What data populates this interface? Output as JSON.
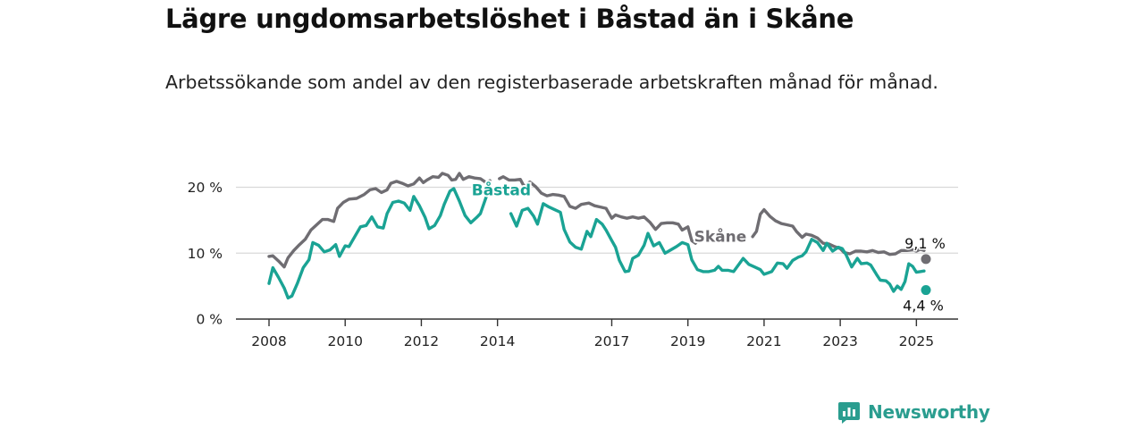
{
  "title": "Lägre ungdomsarbetslöshet i Båstad än i Skåne",
  "subtitle": "Arbetssökande som andel av den registerbaserade arbetskraften månad för månad.",
  "brand": {
    "name": "Newsworthy",
    "icon": "newsworthy-logo-icon"
  },
  "colors": {
    "baastad": "#1aa394",
    "skaane": "#6f6d72",
    "grid": "#d9d9d9",
    "axis": "#333333"
  },
  "chart_data": {
    "type": "line",
    "x_unit": "year",
    "xlim": [
      2008,
      2025.25
    ],
    "ylim": [
      0,
      20
    ],
    "y_ticks": [
      {
        "value": 0,
        "label": "0 %"
      },
      {
        "value": 10,
        "label": "10 %"
      },
      {
        "value": 20,
        "label": "20 %"
      }
    ],
    "x_ticks": [
      {
        "value": 2008,
        "label": "2008"
      },
      {
        "value": 2010,
        "label": "2010"
      },
      {
        "value": 2012,
        "label": "2012"
      },
      {
        "value": 2014,
        "label": "2014"
      },
      {
        "value": 2017,
        "label": "2017"
      },
      {
        "value": 2019,
        "label": "2019"
      },
      {
        "value": 2021,
        "label": "2021"
      },
      {
        "value": 2023,
        "label": "2023"
      },
      {
        "value": 2025,
        "label": "2025"
      }
    ],
    "grid": true,
    "series": [
      {
        "name": "Skåne",
        "color": "#6f6d72",
        "end_label": "9,1 %",
        "points": [
          [
            2008.0,
            9.5
          ],
          [
            2008.1,
            9.6
          ],
          [
            2008.25,
            8.8
          ],
          [
            2008.4,
            7.9
          ],
          [
            2008.5,
            9.3
          ],
          [
            2008.65,
            10.4
          ],
          [
            2008.8,
            11.3
          ],
          [
            2008.95,
            12.1
          ],
          [
            2009.1,
            13.5
          ],
          [
            2009.25,
            14.3
          ],
          [
            2009.4,
            15.1
          ],
          [
            2009.55,
            15.1
          ],
          [
            2009.7,
            14.8
          ],
          [
            2009.8,
            16.8
          ],
          [
            2009.95,
            17.7
          ],
          [
            2010.1,
            18.2
          ],
          [
            2010.3,
            18.3
          ],
          [
            2010.5,
            18.9
          ],
          [
            2010.65,
            19.6
          ],
          [
            2010.8,
            19.8
          ],
          [
            2010.95,
            19.2
          ],
          [
            2011.1,
            19.6
          ],
          [
            2011.2,
            20.6
          ],
          [
            2011.35,
            20.9
          ],
          [
            2011.5,
            20.6
          ],
          [
            2011.65,
            20.2
          ],
          [
            2011.8,
            20.5
          ],
          [
            2011.95,
            21.4
          ],
          [
            2012.05,
            20.7
          ],
          [
            2012.15,
            21.1
          ],
          [
            2012.3,
            21.6
          ],
          [
            2012.45,
            21.5
          ],
          [
            2012.55,
            22.1
          ],
          [
            2012.7,
            21.8
          ],
          [
            2012.8,
            21.1
          ],
          [
            2012.9,
            21.2
          ],
          [
            2013.0,
            22.1
          ],
          [
            2013.1,
            21.2
          ],
          [
            2013.25,
            21.6
          ],
          [
            2013.4,
            21.4
          ],
          [
            2013.55,
            21.3
          ],
          [
            2013.7,
            20.7
          ],
          [
            2013.8,
            21.0
          ],
          [
            2013.95,
            null
          ],
          [
            2014.05,
            21.3
          ],
          [
            2014.15,
            21.6
          ],
          [
            2014.3,
            21.1
          ],
          [
            2014.45,
            21.1
          ],
          [
            2014.6,
            21.2
          ],
          [
            2014.7,
            20.1
          ],
          [
            2014.85,
            20.8
          ],
          [
            2015.0,
            20.1
          ],
          [
            2015.15,
            19.1
          ],
          [
            2015.3,
            18.7
          ],
          [
            2015.45,
            18.9
          ],
          [
            2015.6,
            18.8
          ],
          [
            2015.75,
            18.6
          ],
          [
            2015.9,
            17.1
          ],
          [
            2016.05,
            16.8
          ],
          [
            2016.2,
            17.4
          ],
          [
            2016.4,
            17.6
          ],
          [
            2016.55,
            17.2
          ],
          [
            2016.7,
            17.0
          ],
          [
            2016.85,
            16.8
          ],
          [
            2017.0,
            15.3
          ],
          [
            2017.1,
            15.8
          ],
          [
            2017.25,
            15.5
          ],
          [
            2017.4,
            15.3
          ],
          [
            2017.55,
            15.5
          ],
          [
            2017.7,
            15.3
          ],
          [
            2017.85,
            15.5
          ],
          [
            2018.0,
            14.7
          ],
          [
            2018.15,
            13.6
          ],
          [
            2018.3,
            14.5
          ],
          [
            2018.45,
            14.6
          ],
          [
            2018.6,
            14.6
          ],
          [
            2018.75,
            14.4
          ],
          [
            2018.85,
            13.5
          ],
          [
            2019.0,
            14.0
          ],
          [
            2019.1,
            11.9
          ],
          [
            2019.2,
            11.5
          ],
          [
            2019.35,
            12.5
          ],
          [
            2019.5,
            12.8
          ],
          [
            2019.55,
            null
          ],
          [
            2020.7,
            12.5
          ],
          [
            2020.8,
            13.3
          ],
          [
            2020.9,
            15.9
          ],
          [
            2021.0,
            16.6
          ],
          [
            2021.15,
            15.6
          ],
          [
            2021.3,
            14.9
          ],
          [
            2021.45,
            14.5
          ],
          [
            2021.6,
            14.3
          ],
          [
            2021.75,
            14.1
          ],
          [
            2021.85,
            13.3
          ],
          [
            2022.0,
            12.4
          ],
          [
            2022.1,
            12.9
          ],
          [
            2022.25,
            12.7
          ],
          [
            2022.4,
            12.3
          ],
          [
            2022.55,
            11.5
          ],
          [
            2022.7,
            11.4
          ],
          [
            2022.85,
            11.0
          ],
          [
            2023.0,
            10.7
          ],
          [
            2023.1,
            10.1
          ],
          [
            2023.25,
            9.9
          ],
          [
            2023.4,
            10.3
          ],
          [
            2023.55,
            10.3
          ],
          [
            2023.7,
            10.2
          ],
          [
            2023.85,
            10.4
          ],
          [
            2024.0,
            10.1
          ],
          [
            2024.15,
            10.2
          ],
          [
            2024.3,
            9.8
          ],
          [
            2024.45,
            9.9
          ],
          [
            2024.6,
            10.4
          ],
          [
            2024.75,
            10.4
          ],
          [
            2024.9,
            10.5
          ],
          [
            2025.0,
            10.3
          ],
          [
            2025.1,
            10.6
          ],
          [
            2025.2,
            10.4
          ],
          [
            2025.25,
            9.1
          ]
        ],
        "label_at": [
          2019.85,
          11.75
        ]
      },
      {
        "name": "Båstad",
        "color": "#1aa394",
        "end_label": "4,4 %",
        "points": [
          [
            2008.0,
            5.4
          ],
          [
            2008.1,
            7.8
          ],
          [
            2008.25,
            6.3
          ],
          [
            2008.4,
            4.7
          ],
          [
            2008.5,
            3.2
          ],
          [
            2008.6,
            3.5
          ],
          [
            2008.75,
            5.5
          ],
          [
            2008.9,
            7.8
          ],
          [
            2009.05,
            9.0
          ],
          [
            2009.15,
            11.6
          ],
          [
            2009.3,
            11.2
          ],
          [
            2009.45,
            10.2
          ],
          [
            2009.6,
            10.5
          ],
          [
            2009.75,
            11.3
          ],
          [
            2009.85,
            9.5
          ],
          [
            2010.0,
            11.1
          ],
          [
            2010.1,
            11.0
          ],
          [
            2010.25,
            12.5
          ],
          [
            2010.4,
            14.0
          ],
          [
            2010.55,
            14.2
          ],
          [
            2010.7,
            15.5
          ],
          [
            2010.85,
            14.0
          ],
          [
            2011.0,
            13.8
          ],
          [
            2011.1,
            16.0
          ],
          [
            2011.25,
            17.7
          ],
          [
            2011.4,
            17.9
          ],
          [
            2011.55,
            17.6
          ],
          [
            2011.7,
            16.5
          ],
          [
            2011.8,
            18.6
          ],
          [
            2011.95,
            17.2
          ],
          [
            2012.1,
            15.4
          ],
          [
            2012.2,
            13.7
          ],
          [
            2012.35,
            14.2
          ],
          [
            2012.5,
            15.7
          ],
          [
            2012.6,
            17.4
          ],
          [
            2012.75,
            19.4
          ],
          [
            2012.85,
            19.8
          ],
          [
            2013.0,
            17.9
          ],
          [
            2013.15,
            15.7
          ],
          [
            2013.3,
            14.6
          ],
          [
            2013.45,
            15.4
          ],
          [
            2013.55,
            16.0
          ],
          [
            2013.75,
            19.3
          ],
          [
            2013.85,
            null
          ],
          [
            2014.35,
            16.0
          ],
          [
            2014.5,
            14.1
          ],
          [
            2014.65,
            16.5
          ],
          [
            2014.8,
            16.8
          ],
          [
            2014.95,
            15.6
          ],
          [
            2015.05,
            14.4
          ],
          [
            2015.2,
            17.5
          ],
          [
            2015.35,
            17.0
          ],
          [
            2015.5,
            16.6
          ],
          [
            2015.65,
            16.2
          ],
          [
            2015.75,
            13.6
          ],
          [
            2015.9,
            11.7
          ],
          [
            2016.05,
            10.9
          ],
          [
            2016.2,
            10.6
          ],
          [
            2016.35,
            13.3
          ],
          [
            2016.45,
            12.5
          ],
          [
            2016.6,
            15.1
          ],
          [
            2016.75,
            14.4
          ],
          [
            2016.85,
            13.5
          ],
          [
            2017.0,
            11.9
          ],
          [
            2017.1,
            10.9
          ],
          [
            2017.2,
            8.9
          ],
          [
            2017.35,
            7.2
          ],
          [
            2017.45,
            7.3
          ],
          [
            2017.55,
            9.2
          ],
          [
            2017.7,
            9.7
          ],
          [
            2017.85,
            11.2
          ],
          [
            2017.95,
            13.0
          ],
          [
            2018.1,
            11.1
          ],
          [
            2018.25,
            11.6
          ],
          [
            2018.4,
            10.0
          ],
          [
            2018.55,
            10.5
          ],
          [
            2018.7,
            11.0
          ],
          [
            2018.85,
            11.6
          ],
          [
            2019.0,
            11.3
          ],
          [
            2019.1,
            9.0
          ],
          [
            2019.25,
            7.5
          ],
          [
            2019.4,
            7.2
          ],
          [
            2019.55,
            7.2
          ],
          [
            2019.7,
            7.4
          ],
          [
            2019.8,
            8.0
          ],
          [
            2019.9,
            7.4
          ],
          [
            2020.05,
            7.4
          ],
          [
            2020.2,
            7.2
          ],
          [
            2020.35,
            8.4
          ],
          [
            2020.45,
            9.2
          ],
          [
            2020.6,
            8.3
          ],
          [
            2020.75,
            7.9
          ],
          [
            2020.9,
            7.5
          ],
          [
            2021.0,
            6.8
          ],
          [
            2021.1,
            7.0
          ],
          [
            2021.2,
            7.2
          ],
          [
            2021.35,
            8.5
          ],
          [
            2021.5,
            8.4
          ],
          [
            2021.6,
            7.7
          ],
          [
            2021.75,
            8.9
          ],
          [
            2021.9,
            9.4
          ],
          [
            2022.0,
            9.6
          ],
          [
            2022.1,
            10.2
          ],
          [
            2022.25,
            12.1
          ],
          [
            2022.4,
            11.6
          ],
          [
            2022.55,
            10.4
          ],
          [
            2022.65,
            11.5
          ],
          [
            2022.8,
            10.3
          ],
          [
            2022.95,
            10.9
          ],
          [
            2023.05,
            10.7
          ],
          [
            2023.15,
            9.8
          ],
          [
            2023.3,
            7.9
          ],
          [
            2023.45,
            9.2
          ],
          [
            2023.55,
            8.4
          ],
          [
            2023.7,
            8.5
          ],
          [
            2023.8,
            8.2
          ],
          [
            2023.95,
            6.8
          ],
          [
            2024.05,
            5.9
          ],
          [
            2024.2,
            5.8
          ],
          [
            2024.3,
            5.3
          ],
          [
            2024.4,
            4.2
          ],
          [
            2024.5,
            5.0
          ],
          [
            2024.6,
            4.5
          ],
          [
            2024.7,
            5.7
          ],
          [
            2024.8,
            8.4
          ],
          [
            2024.9,
            8.0
          ],
          [
            2025.0,
            7.1
          ],
          [
            2025.1,
            7.2
          ],
          [
            2025.2,
            7.3
          ],
          [
            2025.25,
            4.4
          ]
        ],
        "label_at": [
          2014.1,
          18.75
        ]
      }
    ]
  }
}
